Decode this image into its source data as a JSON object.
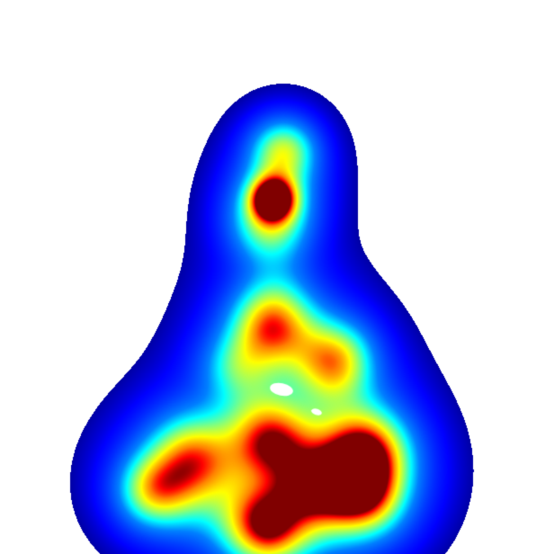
{
  "image": {
    "kind": "density-heatmap-overlay",
    "background_color": "#ffffff",
    "colormap": "jet",
    "colormap_stops": [
      "#00008f",
      "#0000ff",
      "#0080ff",
      "#00ffff",
      "#80ff80",
      "#ffff00",
      "#ff8000",
      "#ff0000",
      "#800000"
    ],
    "hotspot_count": 13,
    "peak_color": "#7f0000"
  }
}
